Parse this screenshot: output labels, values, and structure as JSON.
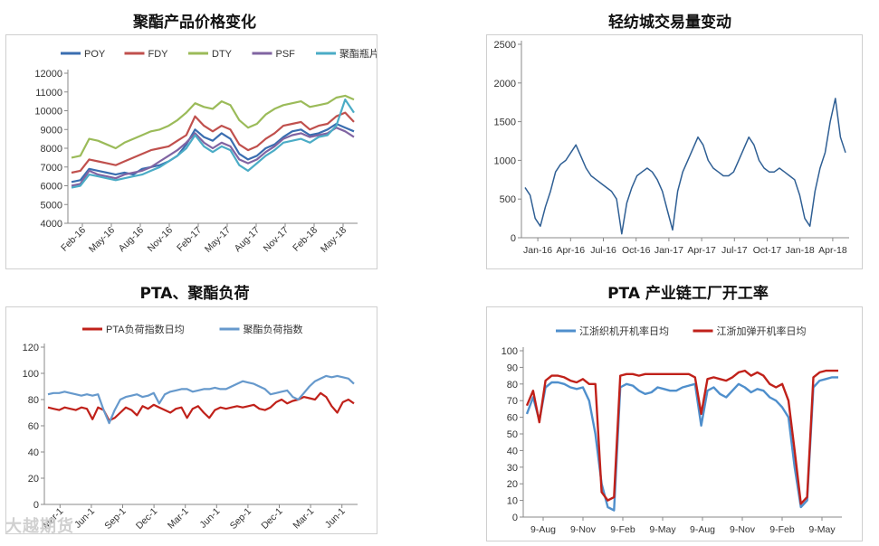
{
  "charts": [
    {
      "title": "聚酯产品价格变化",
      "type": "line",
      "ylim": [
        4000,
        12000
      ],
      "yticks": [
        4000,
        5000,
        6000,
        7000,
        8000,
        9000,
        10000,
        11000,
        12000
      ],
      "xticks": [
        "Feb-16",
        "May-16",
        "Aug-16",
        "Nov-16",
        "Feb-17",
        "May-17",
        "Aug-17",
        "Nov-17",
        "Feb-18",
        "May-18"
      ],
      "legend_position": "top",
      "series": [
        {
          "name": "POY",
          "color": "#3a6eb0",
          "values": [
            6200,
            6300,
            6900,
            6800,
            6700,
            6600,
            6700,
            6600,
            6900,
            7000,
            7100,
            7300,
            7600,
            8200,
            9000,
            8600,
            8400,
            8800,
            8500,
            7700,
            7400,
            7600,
            8000,
            8200,
            8600,
            8900,
            9000,
            8700,
            8800,
            9000,
            9300,
            9100,
            8900
          ]
        },
        {
          "name": "FDY",
          "color": "#c0504d",
          "values": [
            6700,
            6800,
            7400,
            7300,
            7200,
            7100,
            7300,
            7500,
            7700,
            7900,
            8000,
            8100,
            8400,
            8700,
            9700,
            9200,
            8900,
            9200,
            9000,
            8200,
            7900,
            8100,
            8500,
            8800,
            9200,
            9300,
            9400,
            9000,
            9200,
            9300,
            9700,
            9900,
            9400
          ]
        },
        {
          "name": "DTY",
          "color": "#9bbb59",
          "values": [
            7500,
            7600,
            8500,
            8400,
            8200,
            8000,
            8300,
            8500,
            8700,
            8900,
            9000,
            9200,
            9500,
            9900,
            10400,
            10200,
            10100,
            10500,
            10300,
            9500,
            9100,
            9300,
            9800,
            10100,
            10300,
            10400,
            10500,
            10200,
            10300,
            10400,
            10700,
            10800,
            10600
          ]
        },
        {
          "name": "PSF",
          "color": "#8064a2",
          "values": [
            6000,
            6100,
            6800,
            6600,
            6500,
            6400,
            6600,
            6700,
            6800,
            7000,
            7300,
            7600,
            7900,
            8300,
            8800,
            8300,
            8000,
            8300,
            8100,
            7400,
            7200,
            7400,
            7800,
            8100,
            8500,
            8700,
            8800,
            8600,
            8700,
            8800,
            9100,
            8900,
            8600
          ]
        },
        {
          "name": "聚酯瓶片",
          "color": "#4bacc6",
          "values": [
            5900,
            6000,
            6600,
            6500,
            6400,
            6300,
            6400,
            6500,
            6600,
            6800,
            7000,
            7300,
            7600,
            8000,
            8700,
            8100,
            7800,
            8100,
            7900,
            7100,
            6800,
            7200,
            7600,
            7900,
            8300,
            8400,
            8500,
            8300,
            8600,
            8700,
            9200,
            10600,
            9900
          ]
        }
      ]
    },
    {
      "title": "轻纺城交易量变动",
      "type": "line",
      "ylim": [
        0,
        2500
      ],
      "yticks": [
        0,
        500,
        1000,
        1500,
        2000,
        2500
      ],
      "xticks": [
        "Jan-16",
        "Apr-16",
        "Jul-16",
        "Oct-16",
        "Jan-17",
        "Apr-17",
        "Jul-17",
        "Oct-17",
        "Jan-18",
        "Apr-18"
      ],
      "series": [
        {
          "name": "",
          "color": "#2f5f94",
          "values": [
            650,
            550,
            250,
            150,
            400,
            600,
            850,
            950,
            1000,
            1100,
            1200,
            1050,
            900,
            800,
            750,
            700,
            650,
            600,
            500,
            50,
            450,
            650,
            800,
            850,
            900,
            850,
            750,
            600,
            350,
            100,
            600,
            850,
            1000,
            1150,
            1300,
            1200,
            1000,
            900,
            850,
            800,
            800,
            850,
            1000,
            1150,
            1300,
            1200,
            1000,
            900,
            850,
            850,
            900,
            850,
            800,
            750,
            550,
            250,
            150,
            600,
            900,
            1100,
            1500,
            1800,
            1300,
            1100
          ]
        }
      ]
    },
    {
      "title": "PTA、聚酯负荷",
      "type": "line",
      "ylim": [
        0,
        120
      ],
      "yticks": [
        0,
        20,
        40,
        60,
        80,
        100,
        120
      ],
      "xticks": [
        "Mar-1",
        "Jun-1",
        "Sep-1",
        "Dec-1",
        "Mar-1",
        "Jun-1",
        "Sep-1",
        "Dec-1",
        "Mar-1",
        "Jun-1"
      ],
      "legend_position": "top",
      "series": [
        {
          "name": "PTA负荷指数日均",
          "color": "#c0211a",
          "values": [
            74,
            73,
            72,
            74,
            73,
            72,
            74,
            73,
            65,
            74,
            72,
            64,
            66,
            70,
            74,
            72,
            68,
            75,
            73,
            76,
            74,
            72,
            70,
            73,
            74,
            66,
            73,
            75,
            70,
            66,
            72,
            74,
            73,
            74,
            75,
            74,
            75,
            76,
            73,
            72,
            74,
            78,
            80,
            77,
            79,
            80,
            82,
            81,
            80,
            85,
            82,
            75,
            70,
            78,
            80,
            77
          ]
        },
        {
          "name": "聚酯负荷指数",
          "color": "#6699cc",
          "values": [
            84,
            85,
            85,
            86,
            85,
            84,
            83,
            84,
            83,
            84,
            72,
            62,
            72,
            80,
            82,
            83,
            84,
            82,
            83,
            85,
            77,
            84,
            86,
            87,
            88,
            88,
            86,
            87,
            88,
            88,
            89,
            88,
            88,
            90,
            92,
            94,
            93,
            92,
            90,
            88,
            84,
            85,
            86,
            87,
            82,
            80,
            85,
            90,
            94,
            96,
            98,
            97,
            98,
            97,
            96,
            92
          ]
        }
      ]
    },
    {
      "title": "PTA 产业链工厂开工率",
      "type": "line",
      "ylim": [
        0,
        100
      ],
      "yticks": [
        0,
        10,
        20,
        30,
        40,
        50,
        60,
        70,
        80,
        90,
        100
      ],
      "xticks": [
        "9-Aug",
        "9-Nov",
        "9-Feb",
        "9-May",
        "9-Aug",
        "9-Nov",
        "9-Feb",
        "9-May"
      ],
      "legend_position": "top",
      "series": [
        {
          "name": "江浙织机开机率日均",
          "color": "#4f8fcc",
          "values": [
            62,
            72,
            58,
            78,
            81,
            81,
            80,
            78,
            77,
            78,
            70,
            50,
            20,
            6,
            4,
            78,
            80,
            79,
            76,
            74,
            75,
            78,
            77,
            76,
            76,
            78,
            79,
            80,
            55,
            76,
            78,
            74,
            72,
            76,
            80,
            78,
            75,
            77,
            76,
            72,
            70,
            66,
            60,
            30,
            6,
            10,
            78,
            82,
            83,
            84,
            84
          ]
        },
        {
          "name": "江浙加弹开机率日均",
          "color": "#c0211a",
          "values": [
            67,
            76,
            57,
            82,
            85,
            85,
            84,
            82,
            81,
            83,
            80,
            80,
            15,
            10,
            12,
            85,
            86,
            86,
            85,
            86,
            86,
            86,
            86,
            86,
            86,
            86,
            86,
            84,
            62,
            83,
            84,
            83,
            82,
            84,
            87,
            88,
            85,
            87,
            85,
            80,
            78,
            80,
            70,
            40,
            8,
            12,
            84,
            87,
            88,
            88,
            88
          ]
        }
      ]
    }
  ],
  "watermark": "大越期货"
}
